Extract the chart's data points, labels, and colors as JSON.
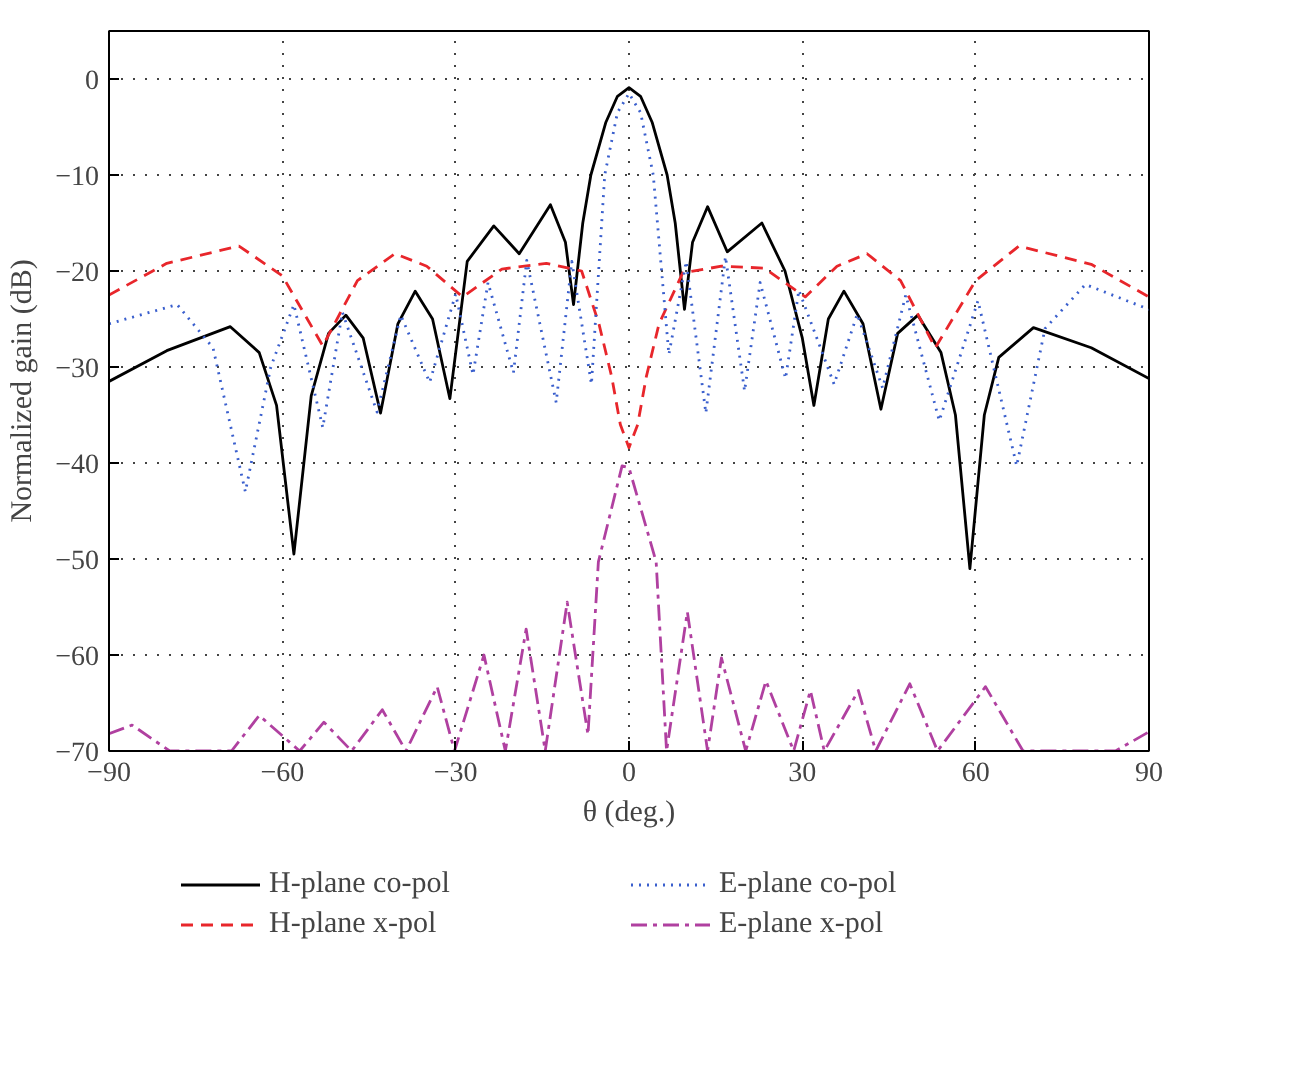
{
  "chart_data": {
    "type": "line",
    "xlabel": "θ (deg.)",
    "ylabel": "Normalized gain (dB)",
    "xlim": [
      -90,
      90
    ],
    "ylim": [
      -70,
      5
    ],
    "xticks": [
      -90,
      -60,
      -30,
      0,
      30,
      60,
      90
    ],
    "yticks": [
      -70,
      -60,
      -50,
      -40,
      -30,
      -20,
      -10,
      0
    ],
    "grid": true,
    "legend": "bottom",
    "series": [
      {
        "name": "H-plane co-pol",
        "color": "#000000",
        "line_style": "solid",
        "x": [
          -90,
          -80,
          -69,
          -64,
          -61,
          -58,
          -55,
          -52,
          -49,
          -46,
          -43,
          -40,
          -37,
          -34,
          -31,
          -28,
          -23.4,
          -19,
          -13.6,
          -11,
          -9.6,
          -8,
          -6.6,
          -4,
          -2,
          0,
          2,
          4,
          6.6,
          8,
          9.6,
          11,
          13.6,
          17,
          23,
          27,
          30,
          32,
          34.5,
          37.2,
          40.5,
          43.6,
          46.5,
          50,
          54,
          56.5,
          59,
          61.5,
          64,
          70,
          80,
          90
        ],
        "values": [
          -31.5,
          -28.3,
          -25.8,
          -28.5,
          -34,
          -49.5,
          -33,
          -26.5,
          -24.6,
          -27,
          -34.8,
          -25.5,
          -22.1,
          -25,
          -33.3,
          -19,
          -15.3,
          -18.2,
          -13.1,
          -17,
          -23.5,
          -15,
          -10,
          -4.5,
          -1.8,
          -0.9,
          -1.8,
          -4.5,
          -10,
          -15,
          -24,
          -17,
          -13.3,
          -18,
          -15,
          -20,
          -27,
          -34,
          -25,
          -22.1,
          -25.5,
          -34.4,
          -26.5,
          -24.6,
          -28.5,
          -35,
          -51,
          -35,
          -29,
          -25.9,
          -28,
          -31.2
        ]
      },
      {
        "name": "H-plane x-pol",
        "color": "#e8262b",
        "line_style": "dashed",
        "x": [
          -90,
          -80,
          -67.5,
          -60,
          -53,
          -47,
          -40.5,
          -35,
          -28.8,
          -22,
          -14.3,
          -8.2,
          -5.2,
          -3,
          -1.5,
          0,
          1.5,
          3,
          5.2,
          9.3,
          16,
          23.4,
          30.5,
          36,
          41.2,
          47,
          53,
          60,
          67.5,
          80,
          90
        ],
        "values": [
          -22.5,
          -19.2,
          -17.4,
          -20.5,
          -27.8,
          -21,
          -18.2,
          -19.5,
          -22.7,
          -19.8,
          -19.2,
          -20,
          -25.5,
          -31,
          -36,
          -38.4,
          -36,
          -31,
          -25.5,
          -20.2,
          -19.5,
          -19.7,
          -22.7,
          -19.5,
          -18.2,
          -21,
          -28,
          -21,
          -17.4,
          -19.3,
          -22.7
        ]
      },
      {
        "name": "E-plane co-pol",
        "color": "#3a5fcd",
        "line_style": "dotted",
        "x": [
          -90,
          -78.2,
          -72,
          -66.4,
          -62,
          -58,
          -53,
          -49.6,
          -43.6,
          -39.5,
          -34.5,
          -30,
          -27,
          -24.4,
          -20,
          -17.7,
          -12.6,
          -9.9,
          -6.5,
          -4.2,
          -2,
          0,
          2,
          4.2,
          6.9,
          9.9,
          13.3,
          16.7,
          20,
          22.7,
          27.1,
          29.4,
          35.5,
          39.5,
          43.9,
          47.9,
          53.7,
          60.4,
          67.1,
          72,
          79,
          90
        ],
        "values": [
          -25.5,
          -23.5,
          -28,
          -43,
          -30,
          -23.5,
          -36.3,
          -24.3,
          -34.7,
          -24.6,
          -31.6,
          -22.4,
          -30.8,
          -21.2,
          -30.6,
          -18.9,
          -33.7,
          -19,
          -31.8,
          -10,
          -3.5,
          -1.5,
          -3.5,
          -10,
          -28.7,
          -19,
          -34.8,
          -18.5,
          -32.5,
          -21.2,
          -31.2,
          -22,
          -31.8,
          -24.5,
          -32.2,
          -22.5,
          -35.6,
          -23.1,
          -40.3,
          -26,
          -21.4,
          -24
        ]
      },
      {
        "name": "E-plane x-pol",
        "color": "#b040a0",
        "line_style": "dashdot",
        "x": [
          -90,
          -86,
          -79.5,
          -74,
          -68.8,
          -64,
          -57,
          -52.8,
          -48,
          -42.7,
          -38.6,
          -33.2,
          -30.2,
          -25.1,
          -21.4,
          -17.8,
          -14.5,
          -10.7,
          -7.1,
          -5.3,
          -1.2,
          0,
          4.7,
          6.5,
          10.1,
          13.6,
          16,
          20.2,
          23.7,
          28.5,
          31.4,
          33.8,
          39.7,
          42.7,
          48.6,
          53.4,
          61.7,
          68.2,
          84.2,
          90
        ],
        "values": [
          -68.2,
          -67.3,
          -70,
          -70,
          -70,
          -66.3,
          -70,
          -67,
          -70,
          -65.7,
          -70,
          -63.3,
          -70,
          -60,
          -70,
          -57.3,
          -70,
          -54.5,
          -68.3,
          -50.3,
          -40.3,
          -40.5,
          -50.3,
          -70,
          -55.5,
          -70,
          -60.3,
          -70,
          -62.7,
          -70,
          -63.7,
          -70,
          -63.7,
          -70,
          -63,
          -70,
          -63.3,
          -70,
          -70,
          -68
        ]
      }
    ]
  }
}
